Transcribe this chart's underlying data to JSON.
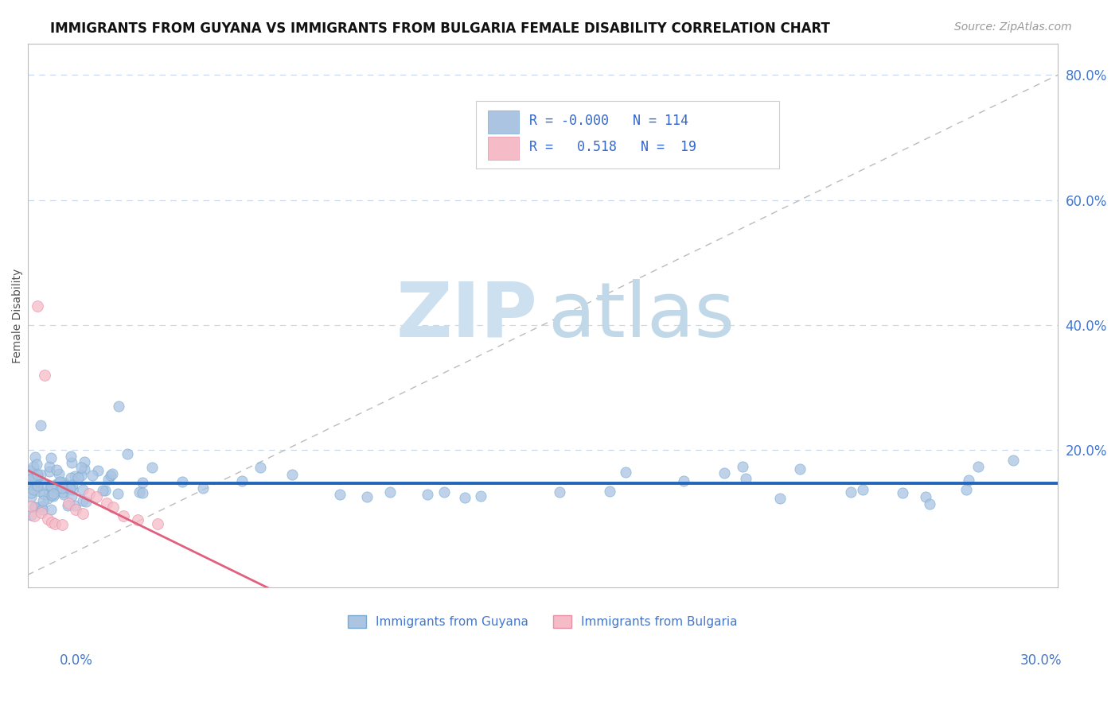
{
  "title": "IMMIGRANTS FROM GUYANA VS IMMIGRANTS FROM BULGARIA FEMALE DISABILITY CORRELATION CHART",
  "source": "Source: ZipAtlas.com",
  "ylabel": "Female Disability",
  "xlim": [
    0.0,
    0.3
  ],
  "ylim": [
    -0.02,
    0.85
  ],
  "guyana_R": -0.0,
  "guyana_N": 114,
  "bulgaria_R": 0.518,
  "bulgaria_N": 19,
  "guyana_color": "#aac4e2",
  "guyana_edge_color": "#7aadd4",
  "bulgaria_color": "#f5bcc8",
  "bulgaria_edge_color": "#e890a8",
  "guyana_line_color": "#2266bb",
  "bulgaria_line_color": "#e06080",
  "ref_line_color": "#bbbbbb",
  "grid_color": "#c8d8ee",
  "background_color": "#ffffff",
  "watermark_zip_color": "#cce0f0",
  "watermark_atlas_color": "#c0d8e8",
  "title_fontsize": 12,
  "marker_size": 90
}
